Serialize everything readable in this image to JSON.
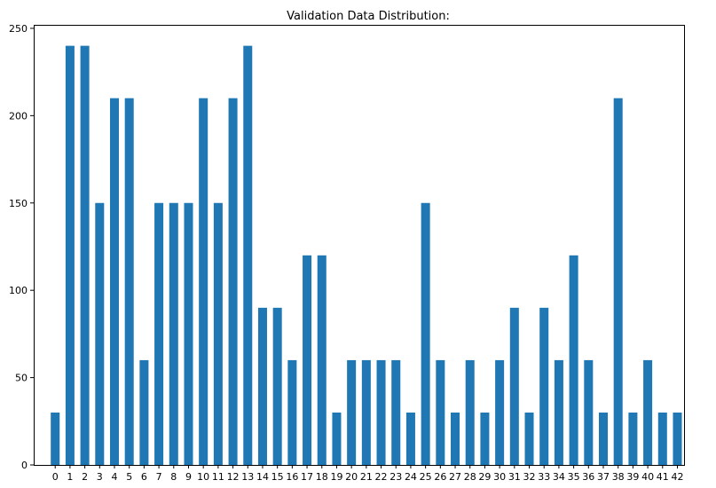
{
  "chart_data": {
    "type": "bar",
    "title": "Validation Data Distribution:",
    "xlabel": "",
    "ylabel": "",
    "categories": [
      "0",
      "1",
      "2",
      "3",
      "4",
      "5",
      "6",
      "7",
      "8",
      "9",
      "10",
      "11",
      "12",
      "13",
      "14",
      "15",
      "16",
      "17",
      "18",
      "19",
      "20",
      "21",
      "22",
      "23",
      "24",
      "25",
      "26",
      "27",
      "28",
      "29",
      "30",
      "31",
      "32",
      "33",
      "34",
      "35",
      "36",
      "37",
      "38",
      "39",
      "40",
      "41",
      "42"
    ],
    "values": [
      30,
      240,
      240,
      150,
      210,
      210,
      60,
      150,
      150,
      150,
      210,
      150,
      210,
      240,
      90,
      90,
      60,
      120,
      120,
      30,
      60,
      60,
      60,
      60,
      30,
      150,
      60,
      30,
      60,
      30,
      60,
      90,
      30,
      90,
      60,
      120,
      60,
      30,
      210,
      30,
      60,
      30,
      30
    ],
    "yticks": [
      0,
      50,
      100,
      150,
      200,
      250
    ],
    "ylim": [
      0,
      252
    ],
    "grid": false,
    "bar_color": "#1f77b4"
  }
}
